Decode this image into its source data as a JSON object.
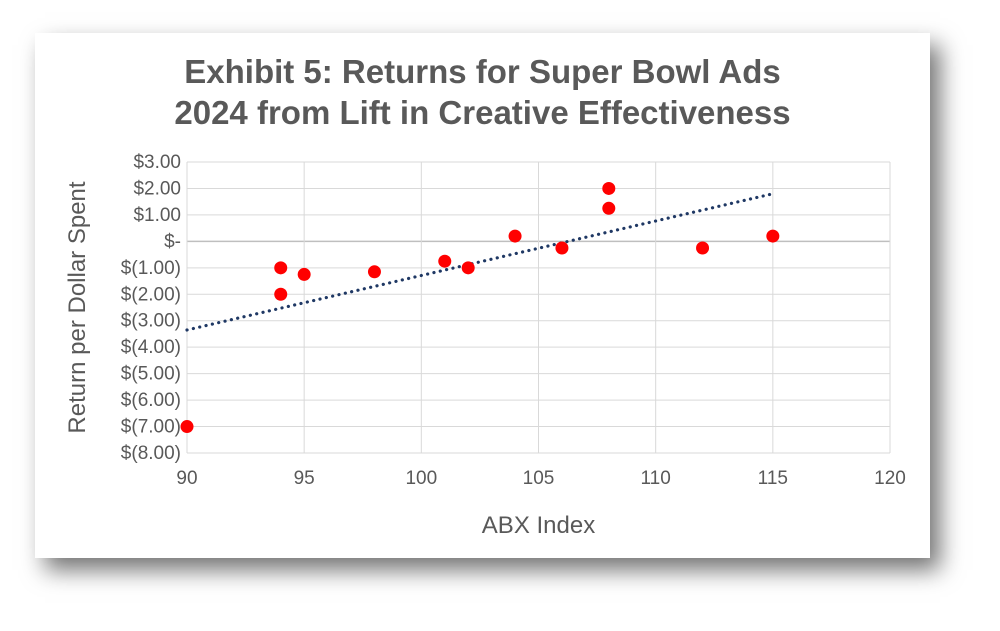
{
  "chart_data": {
    "type": "scatter",
    "title_lines": [
      "Exhibit 5: Returns for Super Bowl Ads",
      "2024 from Lift in Creative Effectiveness"
    ],
    "xlabel": "ABX Index",
    "ylabel": "Return per Dollar Spent",
    "xlim": [
      90,
      120
    ],
    "ylim": [
      -8,
      3
    ],
    "x_ticks": [
      90,
      95,
      100,
      105,
      110,
      115,
      120
    ],
    "x_tick_labels": [
      "90",
      "95",
      "100",
      "105",
      "110",
      "115",
      "120"
    ],
    "y_ticks": [
      3,
      2,
      1,
      0,
      -1,
      -2,
      -3,
      -4,
      -5,
      -6,
      -7,
      -8
    ],
    "y_tick_labels": [
      "$3.00",
      "$2.00",
      "$1.00",
      "$-",
      "$(1.00)",
      "$(2.00)",
      "$(3.00)",
      "$(4.00)",
      "$(5.00)",
      "$(6.00)",
      "$(7.00)",
      "$(8.00)"
    ],
    "grid": true,
    "points": [
      {
        "x": 90,
        "y": -7.0
      },
      {
        "x": 94,
        "y": -1.0
      },
      {
        "x": 94,
        "y": -2.0
      },
      {
        "x": 95,
        "y": -1.25
      },
      {
        "x": 98,
        "y": -1.15
      },
      {
        "x": 101,
        "y": -0.75
      },
      {
        "x": 102,
        "y": -1.0
      },
      {
        "x": 104,
        "y": 0.2
      },
      {
        "x": 106,
        "y": -0.25
      },
      {
        "x": 108,
        "y": 2.0
      },
      {
        "x": 108,
        "y": 1.25
      },
      {
        "x": 112,
        "y": -0.25
      },
      {
        "x": 115,
        "y": 0.2
      }
    ],
    "trendline": {
      "x": [
        90,
        115
      ],
      "y": [
        -3.35,
        1.8
      ],
      "style": "dotted"
    },
    "colors": {
      "points": "#ff0000",
      "trendline": "#1f3864",
      "grid": "#d9d9d9",
      "zero_line": "#bfbfbf",
      "text": "#595959"
    }
  }
}
